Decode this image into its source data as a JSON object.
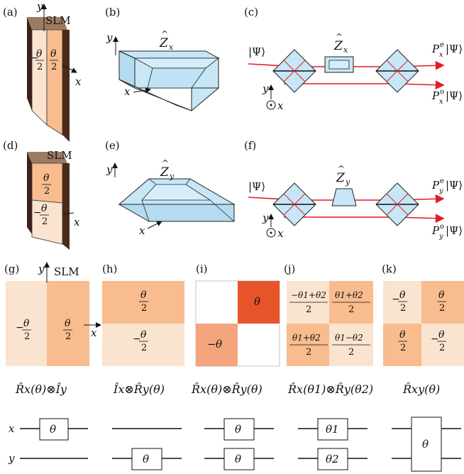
{
  "panel_labels": {
    "a": "(a)",
    "b": "(b)",
    "c": "(c)",
    "d": "(d)",
    "e": "(e)",
    "f": "(f)",
    "g": "(g)",
    "h": "(h)",
    "i": "(i)",
    "j": "(j)",
    "k": "(k)"
  },
  "slm_label": "SLM",
  "axes": {
    "x": "x",
    "y": "y"
  },
  "theta": "θ",
  "neg": "−",
  "two": "2",
  "ops": {
    "Zx": "Z",
    "Zx_sub": "x",
    "Zy": "Z",
    "Zy_sub": "y"
  },
  "state": "|Ψ⟩",
  "proj": {
    "P": "P",
    "e": "e",
    "o": "o",
    "ket": "|Ψ⟩"
  },
  "j_panel": {
    "tl_num": "−θ1+θ2",
    "tr_num": "θ1+θ2",
    "bl_num": "θ1+θ2",
    "br_num": "θ1−θ2"
  },
  "formulas": {
    "g": "R̂x(θ)⊗Îy",
    "h": "Îx⊗R̂y(θ)",
    "i": "R̂x(θ)⊗R̂y(θ)",
    "j": "R̂x(θ1)⊗R̂y(θ2)",
    "k": "R̂xy(θ)"
  },
  "circuit": {
    "wire_x": "x",
    "wire_y": "y",
    "theta1": "θ1",
    "theta2": "θ2"
  },
  "colors": {
    "light": "#fae3cf",
    "medium": "#f8bc8e",
    "dark": "#e8542a",
    "pink": "#f4a57e",
    "prism": "#c7e6f6",
    "beam": "#dd1f26",
    "slm_dark": "#4a2b1c"
  }
}
